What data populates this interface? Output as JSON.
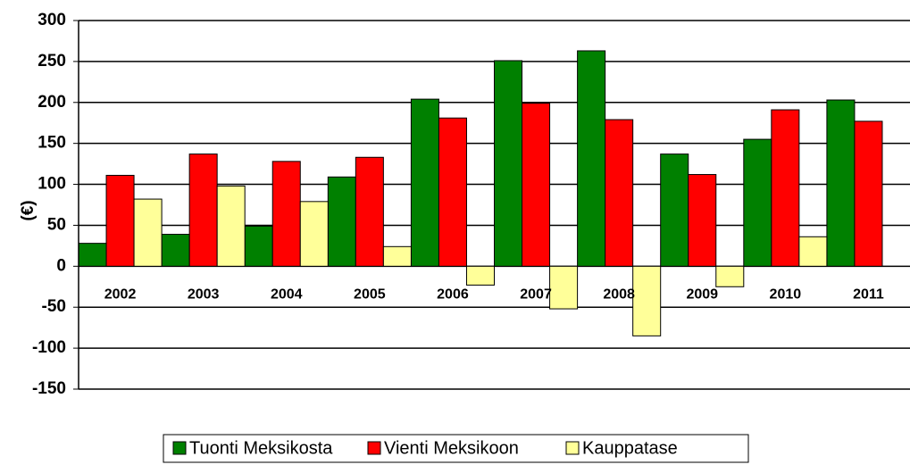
{
  "chart_data": {
    "type": "bar",
    "y_label": "(€)",
    "categories": [
      "2002",
      "2003",
      "2004",
      "2005",
      "2006",
      "2007",
      "2008",
      "2009",
      "2010",
      "2011"
    ],
    "series": [
      {
        "name": "Tuonti Meksikosta",
        "color": "#008000",
        "values": [
          28,
          39,
          49,
          109,
          204,
          251,
          263,
          137,
          155,
          203
        ]
      },
      {
        "name": "Vienti Meksikoon",
        "color": "#ff0000",
        "values": [
          111,
          137,
          128,
          133,
          181,
          199,
          179,
          112,
          191,
          177
        ]
      },
      {
        "name": "Kauppatase",
        "color": "#ffff99",
        "values": [
          82,
          98,
          79,
          24,
          -23,
          -52,
          -85,
          -25,
          36,
          null
        ]
      }
    ],
    "ylim": [
      -150,
      300
    ],
    "yticks": [
      -150,
      -100,
      -50,
      0,
      50,
      100,
      150,
      200,
      250,
      300
    ],
    "grid": true
  }
}
